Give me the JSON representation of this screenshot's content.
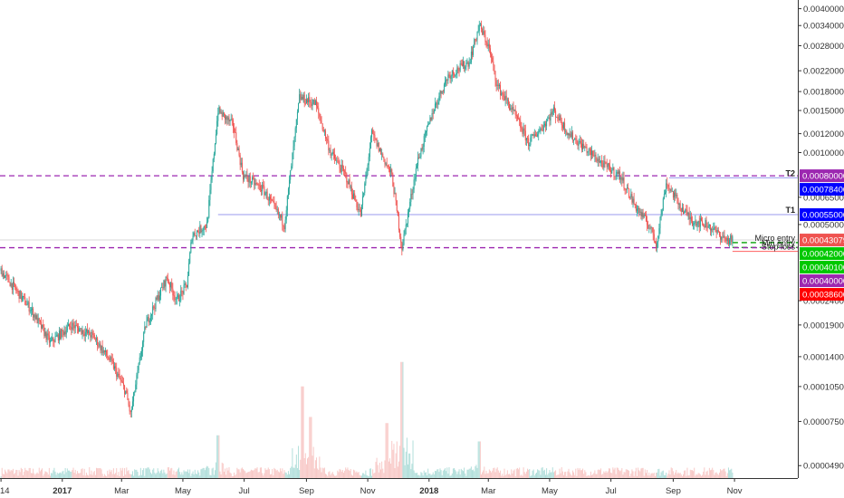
{
  "chart_data": {
    "type": "candlestick",
    "title": "",
    "xlabel": "",
    "ylabel": "",
    "y_scale": "log",
    "ylim": [
      4.5e-05,
      0.0042
    ],
    "grid": false,
    "legend": "none",
    "x_ticks": [
      {
        "label": "14",
        "date": "2016-11-01"
      },
      {
        "label": "2017",
        "date": "2017-01-01"
      },
      {
        "label": "Mar",
        "date": "2017-03-01"
      },
      {
        "label": "May",
        "date": "2017-05-01"
      },
      {
        "label": "Jul",
        "date": "2017-07-01"
      },
      {
        "label": "Sep",
        "date": "2017-09-01"
      },
      {
        "label": "Nov",
        "date": "2017-11-01"
      },
      {
        "label": "2018",
        "date": "2018-01-01"
      },
      {
        "label": "Mar",
        "date": "2018-03-01"
      },
      {
        "label": "May",
        "date": "2018-05-01"
      },
      {
        "label": "Jul",
        "date": "2018-07-01"
      },
      {
        "label": "Sep",
        "date": "2018-09-01"
      },
      {
        "label": "Nov",
        "date": "2018-11-01"
      }
    ],
    "x_range": [
      "2016-10-31",
      "2019-01-03"
    ],
    "y_ticks": [
      "0.00400000",
      "0.00340000",
      "0.00280000",
      "0.00220000",
      "0.00180000",
      "0.00150000",
      "0.00120000",
      "0.00100000",
      "0.00065000",
      "0.00050000",
      "0.00024000",
      "0.00019000",
      "0.00014000",
      "0.00010500",
      "0.00007500",
      "0.00004900"
    ],
    "price_path": [
      [
        "2016-11-01",
        0.00032
      ],
      [
        "2016-12-01",
        0.00022
      ],
      [
        "2016-12-20",
        0.00016
      ],
      [
        "2017-01-10",
        0.00019
      ],
      [
        "2017-02-01",
        0.00017
      ],
      [
        "2017-02-20",
        0.00013
      ],
      [
        "2017-03-05",
        0.0001
      ],
      [
        "2017-03-10",
        8e-05
      ],
      [
        "2017-03-25",
        0.00019
      ],
      [
        "2017-04-15",
        0.0003
      ],
      [
        "2017-04-25",
        0.00024
      ],
      [
        "2017-05-05",
        0.00028
      ],
      [
        "2017-05-10",
        0.00045
      ],
      [
        "2017-05-25",
        0.0005
      ],
      [
        "2017-06-05",
        0.0015
      ],
      [
        "2017-06-20",
        0.0013
      ],
      [
        "2017-06-30",
        0.0008
      ],
      [
        "2017-07-20",
        0.0007
      ],
      [
        "2017-08-10",
        0.0005
      ],
      [
        "2017-08-25",
        0.0017
      ],
      [
        "2017-09-10",
        0.0016
      ],
      [
        "2017-09-25",
        0.001
      ],
      [
        "2017-10-10",
        0.0008
      ],
      [
        "2017-10-25",
        0.00055
      ],
      [
        "2017-11-05",
        0.0012
      ],
      [
        "2017-11-25",
        0.0008
      ],
      [
        "2017-12-05",
        0.0004
      ],
      [
        "2017-12-20",
        0.0009
      ],
      [
        "2018-01-05",
        0.0015
      ],
      [
        "2018-01-20",
        0.0021
      ],
      [
        "2018-02-10",
        0.0024
      ],
      [
        "2018-02-20",
        0.0034
      ],
      [
        "2018-03-01",
        0.0028
      ],
      [
        "2018-03-10",
        0.0019
      ],
      [
        "2018-03-25",
        0.0015
      ],
      [
        "2018-04-10",
        0.0011
      ],
      [
        "2018-04-25",
        0.0013
      ],
      [
        "2018-05-05",
        0.0015
      ],
      [
        "2018-05-20",
        0.0012
      ],
      [
        "2018-06-10",
        0.001
      ],
      [
        "2018-06-25",
        0.00088
      ],
      [
        "2018-07-10",
        0.0008
      ],
      [
        "2018-07-25",
        0.0006
      ],
      [
        "2018-08-10",
        0.00048
      ],
      [
        "2018-08-15",
        0.00041
      ],
      [
        "2018-08-25",
        0.00075
      ],
      [
        "2018-09-10",
        0.00058
      ],
      [
        "2018-09-20",
        0.00052
      ],
      [
        "2018-10-05",
        0.0005
      ],
      [
        "2018-10-15",
        0.00046
      ],
      [
        "2018-10-25",
        0.00043
      ],
      [
        "2018-10-30",
        0.000431
      ]
    ],
    "levels": [
      {
        "label": "",
        "value": "0.00080000",
        "price": 0.0008,
        "bg": "#9c27b0",
        "style": "dashed",
        "line_color": "#9c27b0",
        "line_start": "2016-10-31"
      },
      {
        "label": "T2",
        "value": "0.00078400",
        "price": 0.000784,
        "bg": "#0000ff",
        "style": "solid",
        "line_color": "#9999ee",
        "line_start": "2018-08-28"
      },
      {
        "label": "T1",
        "value": "0.00055000",
        "price": 0.00055,
        "bg": "#0000ff",
        "style": "solid",
        "line_color": "#9999ee",
        "line_start": "2017-06-05"
      },
      {
        "label": "",
        "value": "0.00043079",
        "price": 0.00043079,
        "bg": "#ef5350",
        "style": "solid",
        "line_color": "#d8d8d8",
        "line_start": "2016-10-31"
      },
      {
        "label": "Micro entry",
        "value": "0.00042000",
        "price": 0.00042,
        "bg": "#00c800",
        "style": "dashed",
        "line_color": "#00a000",
        "line_start": "2018-10-30"
      },
      {
        "label": "Min entry",
        "value": "0.00040100",
        "price": 0.000401,
        "bg": "#00c800",
        "style": "dashed",
        "line_color": "#00a000",
        "line_start": "2018-10-30"
      },
      {
        "label": "",
        "value": "0.00040000",
        "price": 0.0004,
        "bg": "#9c27b0",
        "style": "dashed",
        "line_color": "#9c27b0",
        "line_start": "2016-10-31"
      },
      {
        "label": "Stop loss",
        "value": "0.00038600",
        "price": 0.000386,
        "bg": "#ff0000",
        "style": "solid",
        "line_color": "#ff6060",
        "line_start": "2018-10-30"
      }
    ],
    "volume": {
      "visible": true,
      "spikes": [
        {
          "date": "2017-06-05",
          "rel": 0.35
        },
        {
          "date": "2017-08-28",
          "rel": 0.75
        },
        {
          "date": "2017-12-05",
          "rel": 0.95
        },
        {
          "date": "2017-11-20",
          "rel": 0.45
        },
        {
          "date": "2017-09-05",
          "rel": 0.5
        },
        {
          "date": "2018-02-20",
          "rel": 0.3
        }
      ]
    },
    "colors": {
      "up": "#26a69a",
      "down": "#ef5350",
      "vol_up": "#b2dfdb",
      "vol_down": "#f8c9c7",
      "axis_text": "#333333"
    }
  }
}
